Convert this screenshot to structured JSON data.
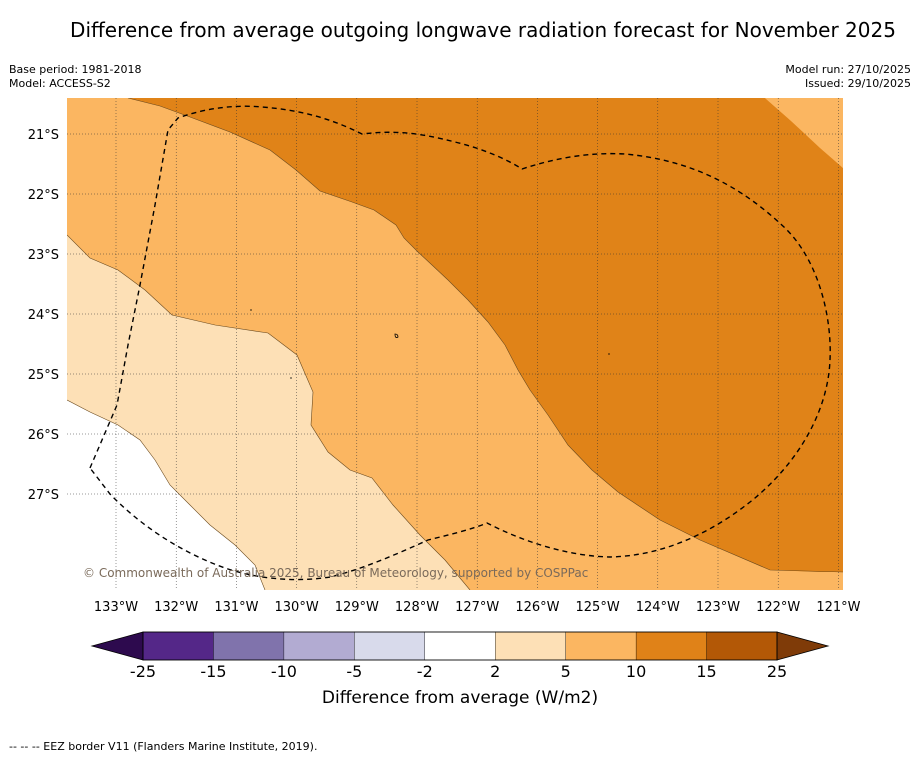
{
  "title": "Difference from average outgoing longwave radiation forecast for November 2025",
  "base_period": "Base period: 1981-2018",
  "model": "Model: ACCESS-S2",
  "model_run": "Model run: 27/10/2025",
  "issued": "Issued: 29/10/2025",
  "copyright": "© Commonwealth of Australia 2025, Bureau of Meteorology, supported by COSPPac",
  "footer_note": "-- -- -- EEZ border V11 (Flanders Marine Institute, 2019).",
  "map": {
    "lon_labels": [
      "133°W",
      "132°W",
      "131°W",
      "130°W",
      "129°W",
      "128°W",
      "127°W",
      "126°W",
      "125°W",
      "124°W",
      "123°W",
      "122°W",
      "121°W"
    ],
    "lat_labels": [
      "21°S",
      "22°S",
      "23°S",
      "24°S",
      "25°S",
      "26°S",
      "27°S"
    ],
    "categories": [
      {
        "range": "2 to 5",
        "color": "#fde0b6"
      },
      {
        "range": "5 to 10",
        "color": "#fbb661"
      },
      {
        "range": "10 to 15",
        "color": "#e08318"
      },
      {
        "range": "-2 to 2",
        "color": "#ffffff"
      }
    ]
  },
  "colorbar": {
    "label": "Difference from average (W/m2)",
    "ticks": [
      "-25",
      "-15",
      "-10",
      "-5",
      "-2",
      "2",
      "5",
      "10",
      "15",
      "25"
    ],
    "low_extend_color": "#2d0a4e",
    "high_extend_color": "#7f3b08",
    "colors": [
      "#542788",
      "#8073ac",
      "#b2abd2",
      "#d8daeb",
      "#ffffff",
      "#fde0b6",
      "#fbb661",
      "#e08218",
      "#b35806"
    ]
  }
}
